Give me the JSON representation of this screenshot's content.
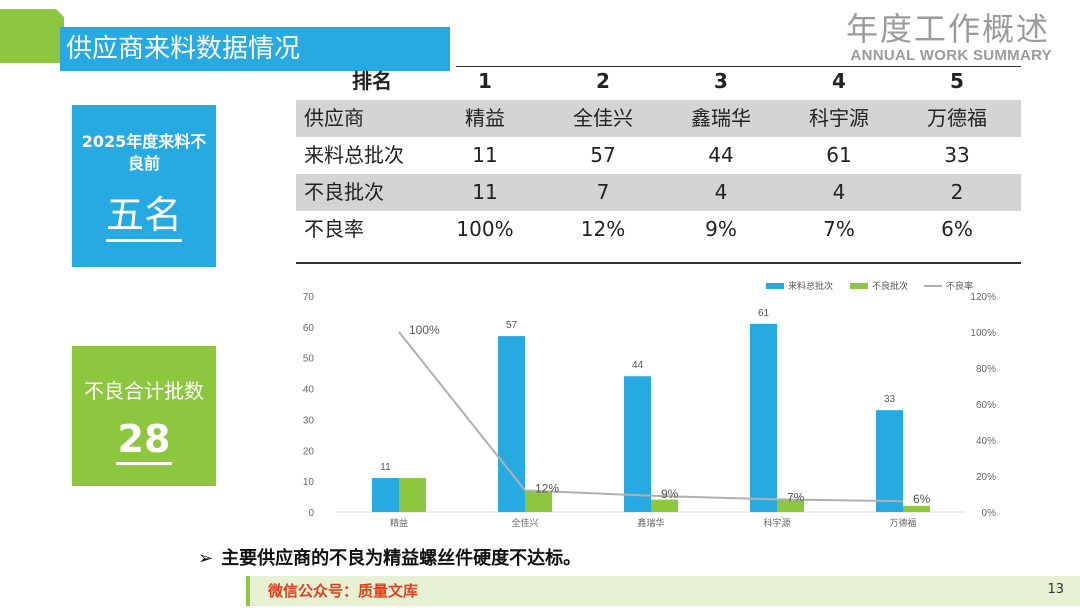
{
  "header": {
    "section_title": "供应商来料数据情况",
    "main_title": "年度工作概述",
    "subtitle": "ANNUAL WORK SUMMARY"
  },
  "cards": {
    "top": {
      "title": "2025年度来料不良前",
      "value": "五名"
    },
    "bottom": {
      "title": "不良合计批数",
      "value": "28"
    }
  },
  "table": {
    "rank_label": "排名",
    "ranks": [
      "1",
      "2",
      "3",
      "4",
      "5"
    ],
    "rows": [
      {
        "label": "供应商",
        "values": [
          "精益",
          "全佳兴",
          "鑫瑞华",
          "科宇源",
          "万德福"
        ]
      },
      {
        "label": "来料总批次",
        "values": [
          "11",
          "57",
          "44",
          "61",
          "33"
        ]
      },
      {
        "label": "不良批次",
        "values": [
          "11",
          "7",
          "4",
          "4",
          "2"
        ]
      },
      {
        "label": "不良率",
        "values": [
          "100%",
          "12%",
          "9%",
          "7%",
          "6%"
        ]
      }
    ]
  },
  "chart_data": {
    "type": "bar",
    "categories": [
      "精益",
      "全佳兴",
      "鑫瑞华",
      "科宇源",
      "万德福"
    ],
    "series": [
      {
        "name": "来料总批次",
        "type": "bar",
        "axis": "left",
        "values": [
          11,
          57,
          44,
          61,
          33
        ],
        "color": "#27a9e1"
      },
      {
        "name": "不良批次",
        "type": "bar",
        "axis": "left",
        "values": [
          11,
          7,
          4,
          4,
          2
        ],
        "color": "#8dc63f"
      },
      {
        "name": "不良率",
        "type": "line",
        "axis": "right",
        "values": [
          100,
          12,
          9,
          7,
          6
        ],
        "color": "#b0b0b0"
      }
    ],
    "bar_labels": [
      "11",
      "57",
      "44",
      "61",
      "33"
    ],
    "line_labels": [
      "100%",
      "12%",
      "9%",
      "7%",
      "6%"
    ],
    "ylim": [
      0,
      70
    ],
    "yticks": [
      "0",
      "10",
      "20",
      "30",
      "40",
      "50",
      "60",
      "70"
    ],
    "y2lim": [
      0,
      120
    ],
    "y2ticks": [
      "0%",
      "20%",
      "40%",
      "60%",
      "80%",
      "100%",
      "120%"
    ],
    "legend_position": "top-right",
    "grid": false
  },
  "note": {
    "bullet": "➢",
    "text": "主要供应商的不良为精益螺丝件硬度不达标。"
  },
  "footer": {
    "source": "微信公众号：质量文库",
    "page": "13"
  }
}
